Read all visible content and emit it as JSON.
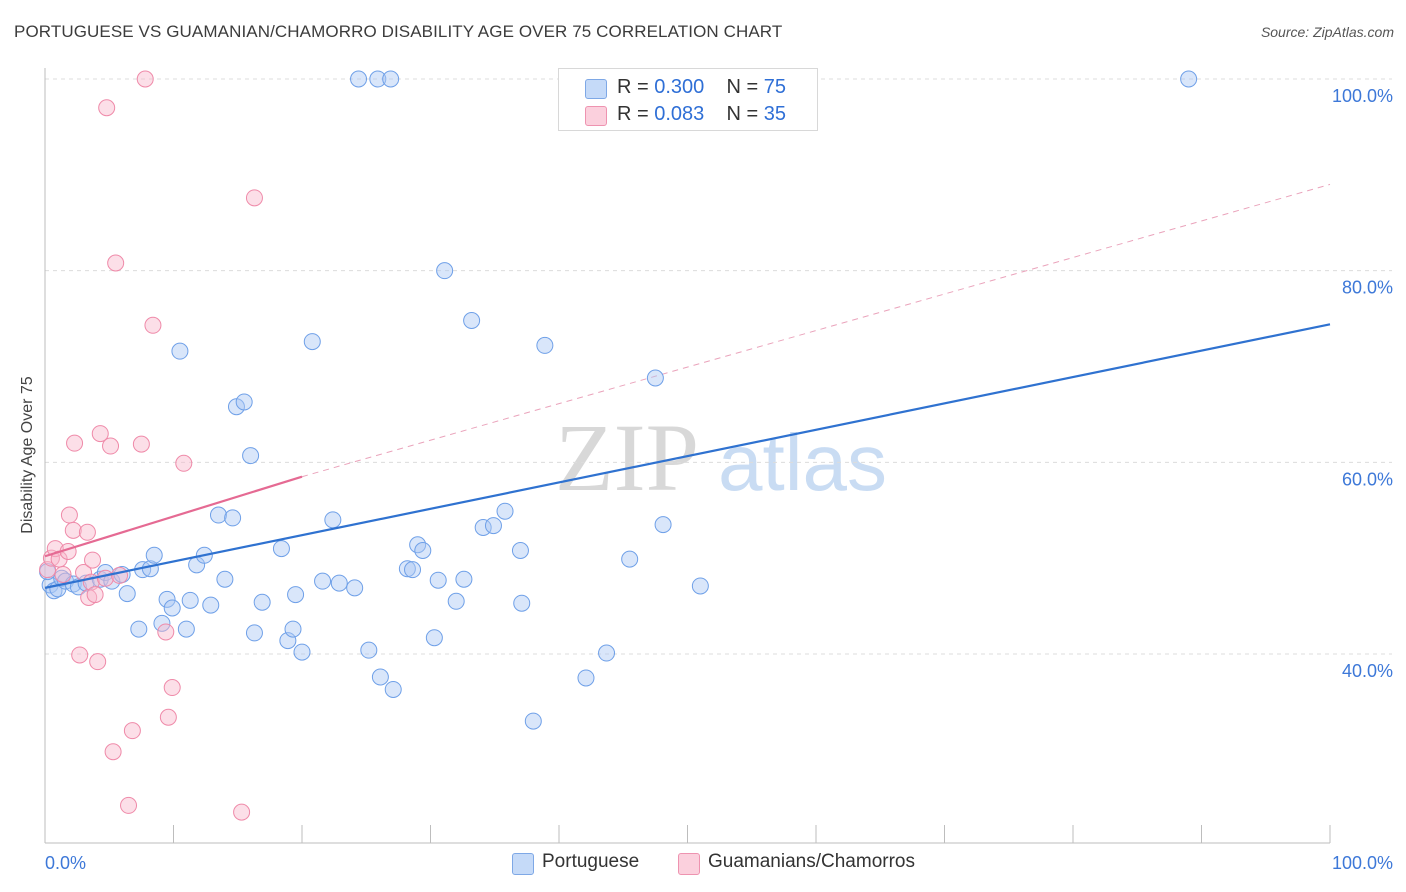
{
  "title": "PORTUGUESE VS GUAMANIAN/CHAMORRO DISABILITY AGE OVER 75 CORRELATION CHART",
  "source": "Source: ZipAtlas.com",
  "watermark": {
    "zip": "ZIP",
    "atlas": "atlas"
  },
  "legend_top": [
    {
      "r_label": "R =",
      "r_value": "0.300",
      "n_label": "N =",
      "n_value": "75",
      "color": "#aac8f4"
    },
    {
      "r_label": "R =",
      "r_value": "0.083",
      "n_label": "N =",
      "n_value": "35",
      "color": "#f8b8cb"
    }
  ],
  "legend_bottom": [
    {
      "label": "Portuguese",
      "color": "#aac8f4"
    },
    {
      "label": "Guamanians/Chamorros",
      "color": "#f8b8cb"
    }
  ],
  "chart_data": {
    "type": "scatter",
    "title": "PORTUGUESE VS GUAMANIAN/CHAMORRO DISABILITY AGE OVER 75 CORRELATION CHART",
    "xlabel": "",
    "ylabel": "Disability Age Over 75",
    "xlim": [
      0,
      100
    ],
    "ylim": [
      20,
      103
    ],
    "x_tick_labels": [
      "0.0%",
      "100.0%"
    ],
    "y_ticks": [
      40,
      60,
      80,
      100
    ],
    "y_tick_labels": [
      "40.0%",
      "60.0%",
      "80.0%",
      "100.0%"
    ],
    "grid": true,
    "colors": {
      "portuguese": "#6fa0e8",
      "guamanian": "#ef8aa9",
      "trend_blue": "#2f72d0",
      "trend_pink": "#e56a93"
    },
    "series": [
      {
        "name": "Portuguese",
        "points": [
          [
            0.4,
            47.2
          ],
          [
            0.7,
            46.6
          ],
          [
            1.0,
            46.8
          ],
          [
            1.3,
            47.9
          ],
          [
            1.6,
            47.6
          ],
          [
            2.2,
            47.3
          ],
          [
            2.6,
            47.0
          ],
          [
            3.2,
            47.4
          ],
          [
            4.3,
            47.8
          ],
          [
            4.7,
            48.5
          ],
          [
            5.2,
            47.6
          ],
          [
            6.0,
            48.3
          ],
          [
            6.4,
            46.3
          ],
          [
            7.3,
            42.6
          ],
          [
            7.6,
            48.8
          ],
          [
            8.2,
            48.9
          ],
          [
            8.5,
            50.3
          ],
          [
            9.1,
            43.2
          ],
          [
            9.5,
            45.7
          ],
          [
            9.9,
            44.8
          ],
          [
            10.5,
            71.6
          ],
          [
            11.0,
            42.6
          ],
          [
            11.3,
            45.6
          ],
          [
            11.8,
            49.3
          ],
          [
            12.4,
            50.3
          ],
          [
            12.9,
            45.1
          ],
          [
            13.5,
            54.5
          ],
          [
            14.0,
            47.8
          ],
          [
            14.6,
            54.2
          ],
          [
            14.9,
            65.8
          ],
          [
            15.5,
            66.3
          ],
          [
            16.0,
            60.7
          ],
          [
            16.3,
            42.2
          ],
          [
            16.9,
            45.4
          ],
          [
            18.4,
            51.0
          ],
          [
            18.9,
            41.4
          ],
          [
            19.3,
            42.6
          ],
          [
            19.5,
            46.2
          ],
          [
            20.0,
            40.2
          ],
          [
            20.8,
            72.6
          ],
          [
            21.6,
            47.6
          ],
          [
            22.4,
            54.0
          ],
          [
            22.9,
            47.4
          ],
          [
            24.1,
            46.9
          ],
          [
            24.4,
            100.0
          ],
          [
            25.2,
            40.4
          ],
          [
            25.9,
            100.0
          ],
          [
            26.1,
            37.6
          ],
          [
            26.9,
            100.0
          ],
          [
            27.1,
            36.3
          ],
          [
            28.2,
            48.9
          ],
          [
            28.6,
            48.8
          ],
          [
            29.0,
            51.4
          ],
          [
            29.4,
            50.8
          ],
          [
            30.3,
            41.7
          ],
          [
            30.6,
            47.7
          ],
          [
            31.1,
            80.0
          ],
          [
            32.0,
            45.5
          ],
          [
            32.6,
            47.8
          ],
          [
            33.2,
            74.8
          ],
          [
            34.1,
            53.2
          ],
          [
            34.9,
            53.4
          ],
          [
            35.8,
            54.9
          ],
          [
            37.1,
            45.3
          ],
          [
            37.0,
            50.8
          ],
          [
            38.0,
            33.0
          ],
          [
            38.9,
            72.2
          ],
          [
            42.1,
            37.5
          ],
          [
            43.7,
            40.1
          ],
          [
            45.5,
            49.9
          ],
          [
            47.5,
            68.8
          ],
          [
            48.1,
            53.5
          ],
          [
            51.0,
            47.1
          ],
          [
            89.0,
            100.0
          ],
          [
            0.2,
            48.6
          ]
        ]
      },
      {
        "name": "Guamanians/Chamorros",
        "points": [
          [
            0.2,
            48.8
          ],
          [
            0.5,
            50.0
          ],
          [
            0.8,
            51.0
          ],
          [
            1.1,
            49.9
          ],
          [
            1.4,
            48.3
          ],
          [
            1.8,
            50.7
          ],
          [
            1.9,
            54.5
          ],
          [
            2.2,
            52.9
          ],
          [
            2.3,
            62.0
          ],
          [
            2.7,
            39.9
          ],
          [
            3.0,
            48.5
          ],
          [
            3.3,
            52.7
          ],
          [
            3.4,
            45.9
          ],
          [
            3.6,
            47.5
          ],
          [
            3.7,
            49.8
          ],
          [
            3.9,
            46.2
          ],
          [
            4.1,
            39.2
          ],
          [
            4.3,
            63.0
          ],
          [
            4.7,
            47.9
          ],
          [
            4.8,
            97.0
          ],
          [
            5.1,
            61.7
          ],
          [
            5.3,
            29.8
          ],
          [
            5.5,
            80.8
          ],
          [
            5.8,
            48.2
          ],
          [
            6.5,
            24.2
          ],
          [
            6.8,
            32.0
          ],
          [
            7.5,
            61.9
          ],
          [
            7.8,
            100.0
          ],
          [
            8.4,
            74.3
          ],
          [
            9.4,
            42.3
          ],
          [
            9.6,
            33.4
          ],
          [
            9.9,
            36.5
          ],
          [
            10.8,
            59.9
          ],
          [
            15.3,
            23.5
          ],
          [
            16.3,
            87.6
          ]
        ]
      }
    ],
    "trend_lines": [
      {
        "series": "Portuguese",
        "x": [
          0,
          100
        ],
        "y": [
          46.9,
          74.4
        ],
        "style": "solid"
      },
      {
        "series": "Guamanians/Chamorros",
        "x": [
          0,
          20
        ],
        "y": [
          50.2,
          58.5
        ],
        "style": "solid"
      },
      {
        "series": "Guamanians/Chamorros",
        "x": [
          20,
          100
        ],
        "y": [
          58.5,
          89.0
        ],
        "style": "dashed"
      }
    ]
  }
}
